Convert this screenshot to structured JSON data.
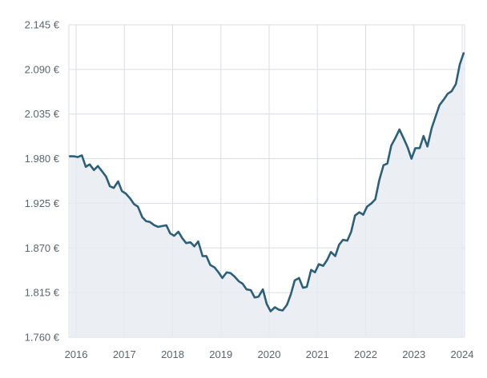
{
  "colors": {
    "line": "#2b5f7a",
    "area": "#e8ecf1",
    "grid": "#d9dde3",
    "axis_text": "#5b6470"
  },
  "chart_data": {
    "type": "area",
    "title": "",
    "xlabel": "",
    "ylabel": "",
    "xlim": [
      2015.85,
      2024.05
    ],
    "ylim": [
      1760,
      2145
    ],
    "grid": true,
    "legend": "none",
    "y_ticks": [
      1760,
      1815,
      1870,
      1925,
      1980,
      2035,
      2090,
      2145
    ],
    "y_tick_labels": [
      "1.760 €",
      "1.815 €",
      "1.870 €",
      "1.925 €",
      "1.980 €",
      "2.035 €",
      "2.090 €",
      "2.145 €"
    ],
    "x_ticks": [
      2016,
      2017,
      2018,
      2019,
      2020,
      2021,
      2022,
      2023,
      2024
    ],
    "x_tick_labels": [
      "2016",
      "2017",
      "2018",
      "2019",
      "2020",
      "2021",
      "2022",
      "2023",
      "2024"
    ],
    "series": [
      {
        "x": [
          2015.87,
          2015.95,
          2016.03,
          2016.12,
          2016.2,
          2016.28,
          2016.37,
          2016.45,
          2016.53,
          2016.62,
          2016.7,
          2016.78,
          2016.87,
          2016.95,
          2017.03,
          2017.12,
          2017.2,
          2017.28,
          2017.37,
          2017.45,
          2017.53,
          2017.62,
          2017.7,
          2017.78,
          2017.87,
          2017.95,
          2018.03,
          2018.12,
          2018.2,
          2018.28,
          2018.37,
          2018.45,
          2018.53,
          2018.62,
          2018.7,
          2018.78,
          2018.87,
          2018.95,
          2019.03,
          2019.12,
          2019.2,
          2019.28,
          2019.37,
          2019.45,
          2019.53,
          2019.62,
          2019.7,
          2019.78,
          2019.87,
          2019.95,
          2020.03,
          2020.12,
          2020.2,
          2020.28,
          2020.37,
          2020.45,
          2020.53,
          2020.62,
          2020.7,
          2020.78,
          2020.87,
          2020.95,
          2021.03,
          2021.12,
          2021.2,
          2021.28,
          2021.37,
          2021.45,
          2021.53,
          2021.62,
          2021.7,
          2021.78,
          2021.87,
          2021.95,
          2022.03,
          2022.12,
          2022.2,
          2022.28,
          2022.37,
          2022.45,
          2022.53,
          2022.62,
          2022.7,
          2022.78,
          2022.87,
          2022.95,
          2023.03,
          2023.12,
          2023.2,
          2023.28,
          2023.37,
          2023.45,
          2023.53,
          2023.62,
          2023.7,
          2023.78,
          2023.87,
          2023.95,
          2024.03
        ],
        "values": [
          1983,
          1983,
          1982,
          1984,
          1970,
          1973,
          1966,
          1971,
          1965,
          1958,
          1946,
          1944,
          1952,
          1940,
          1937,
          1931,
          1924,
          1921,
          1908,
          1903,
          1902,
          1898,
          1896,
          1897,
          1898,
          1888,
          1885,
          1890,
          1882,
          1876,
          1877,
          1872,
          1878,
          1860,
          1860,
          1849,
          1846,
          1840,
          1833,
          1840,
          1839,
          1835,
          1829,
          1826,
          1819,
          1818,
          1809,
          1810,
          1819,
          1801,
          1792,
          1797,
          1794,
          1793,
          1800,
          1813,
          1830,
          1833,
          1821,
          1822,
          1843,
          1840,
          1850,
          1848,
          1855,
          1865,
          1860,
          1874,
          1880,
          1879,
          1890,
          1910,
          1914,
          1911,
          1921,
          1925,
          1930,
          1953,
          1972,
          1974,
          1996,
          2006,
          2016,
          2006,
          1994,
          1980,
          1993,
          1993,
          2008,
          1995,
          2018,
          2032,
          2046,
          2053,
          2060,
          2063,
          2072,
          2096,
          2110
        ]
      }
    ]
  }
}
